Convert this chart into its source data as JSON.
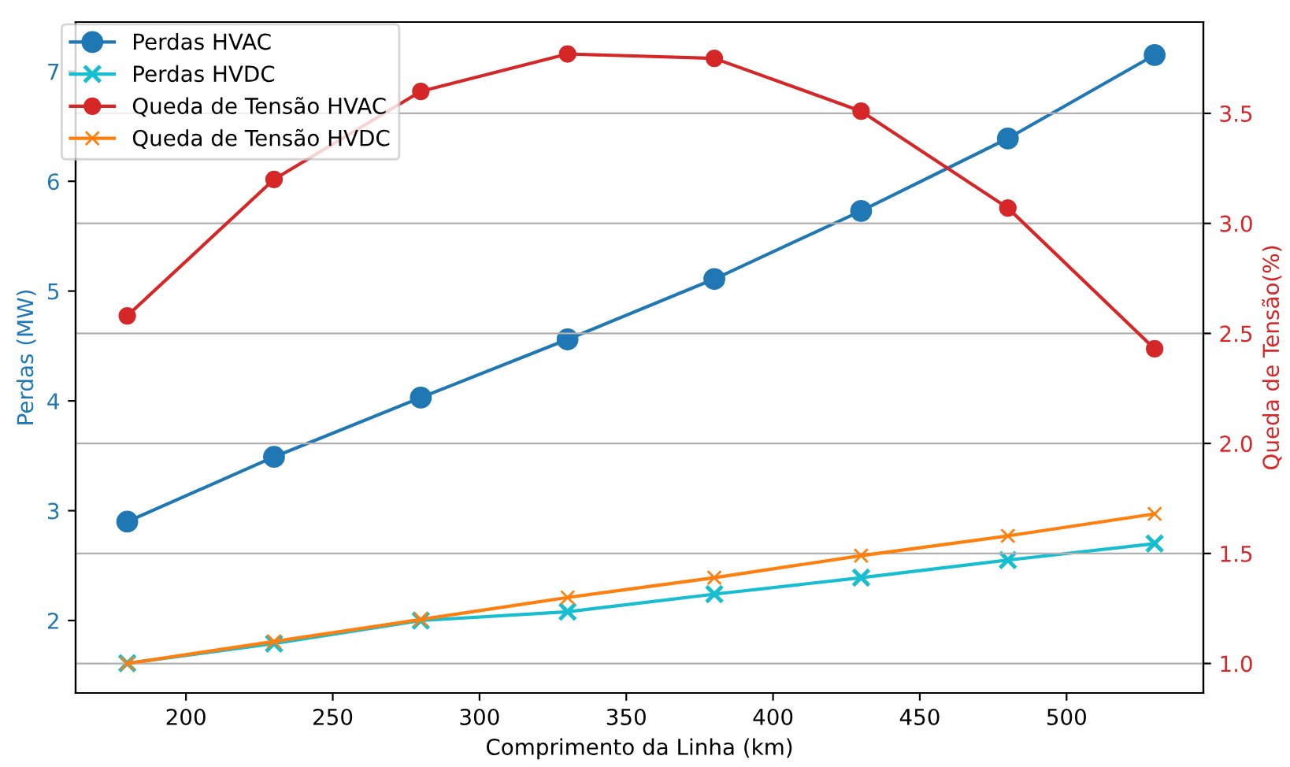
{
  "chart_data": {
    "type": "line",
    "xlabel": "Comprimento da Linha (km)",
    "ylabel": "Perdas (MW)",
    "y2label": "Queda de Tensão(%)",
    "x": [
      180,
      230,
      280,
      330,
      380,
      430,
      480,
      530
    ],
    "series": [
      {
        "name": "Perdas HVAC",
        "color": "#1f77b4",
        "marker": "circle",
        "values": [
          2.9,
          3.49,
          4.03,
          4.56,
          5.11,
          5.73,
          6.39,
          7.15
        ]
      },
      {
        "name": "Perdas HVDC",
        "color": "#17becf",
        "marker": "cross",
        "values": [
          1.61,
          1.79,
          2.0,
          2.08,
          2.24,
          2.39,
          2.55,
          2.7
        ]
      },
      {
        "name": "Queda de Tensão HVAC",
        "color": "#d62728",
        "marker": "circle",
        "axis": "y2",
        "values": [
          2.58,
          3.2,
          3.6,
          3.77,
          3.75,
          3.51,
          3.07,
          2.43
        ]
      },
      {
        "name": "Queda de Tensão HVDC",
        "color": "#ff7f0e",
        "marker": "cross",
        "axis": "y2",
        "values": [
          1.0,
          1.1,
          1.2,
          1.3,
          1.39,
          1.49,
          1.58,
          1.68
        ]
      }
    ],
    "xlim": [
      162.4,
      546.6
    ],
    "xticks": [
      200,
      250,
      300,
      350,
      400,
      450,
      500
    ],
    "ylim": [
      1.34,
      7.45
    ],
    "yticks": [
      2,
      3,
      4,
      5,
      6,
      7
    ],
    "y2lim": [
      0.866,
      3.915
    ],
    "y2ticks": [
      {
        "value": 1.0,
        "label": "1.0"
      },
      {
        "value": 1.5,
        "label": "1.5"
      },
      {
        "value": 2.0,
        "label": "2.0"
      },
      {
        "value": 2.5,
        "label": "2.5"
      },
      {
        "value": 3.0,
        "label": "3.0"
      },
      {
        "value": 3.5,
        "label": "3.5"
      }
    ],
    "grid": "y2",
    "legend": "top left",
    "line_style": "solid"
  }
}
